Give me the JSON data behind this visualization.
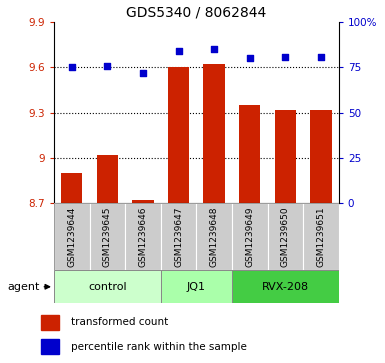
{
  "title": "GDS5340 / 8062844",
  "samples": [
    "GSM1239644",
    "GSM1239645",
    "GSM1239646",
    "GSM1239647",
    "GSM1239648",
    "GSM1239649",
    "GSM1239650",
    "GSM1239651"
  ],
  "bar_values": [
    8.9,
    9.02,
    8.72,
    9.6,
    9.62,
    9.35,
    9.32,
    9.32
  ],
  "bar_base": 8.7,
  "scatter_values": [
    75.0,
    75.5,
    72.0,
    84.0,
    85.0,
    80.0,
    80.5,
    80.5
  ],
  "ylim_left": [
    8.7,
    9.9
  ],
  "ylim_right": [
    0,
    100
  ],
  "yticks_left": [
    8.7,
    9.0,
    9.3,
    9.6,
    9.9
  ],
  "ytick_labels_left": [
    "8.7",
    "9",
    "9.3",
    "9.6",
    "9.9"
  ],
  "yticks_right": [
    0,
    25,
    50,
    75,
    100
  ],
  "ytick_labels_right": [
    "0",
    "25",
    "50",
    "75",
    "100%"
  ],
  "hlines": [
    9.0,
    9.3,
    9.6
  ],
  "bar_color": "#cc2200",
  "scatter_color": "#0000cc",
  "groups": [
    {
      "label": "control",
      "start": 0,
      "end": 3,
      "color": "#ccffcc"
    },
    {
      "label": "JQ1",
      "start": 3,
      "end": 5,
      "color": "#aaffaa"
    },
    {
      "label": "RVX-208",
      "start": 5,
      "end": 8,
      "color": "#44cc44"
    }
  ],
  "agent_label": "agent",
  "legend_bar_label": "transformed count",
  "legend_scatter_label": "percentile rank within the sample",
  "sample_box_color": "#cccccc",
  "bar_width": 0.6,
  "title_fontsize": 10,
  "tick_fontsize": 7.5,
  "sample_fontsize": 6.5,
  "group_fontsize": 8,
  "legend_fontsize": 7.5
}
